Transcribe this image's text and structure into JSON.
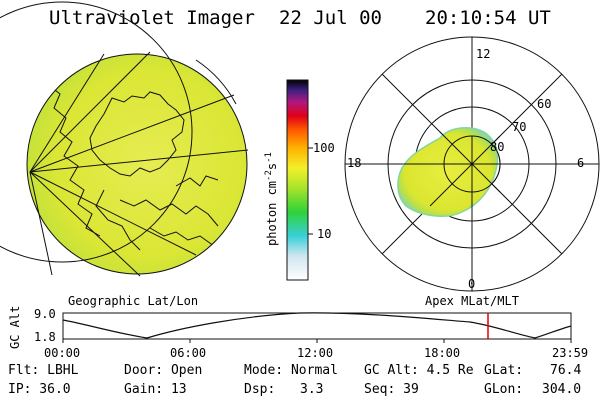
{
  "header": {
    "instrument": "Ultraviolet Imager",
    "date": "22 Jul 00",
    "time": "20:10:54 UT"
  },
  "colorbar": {
    "label_text": "photon cm",
    "label_sup1": "-2",
    "label_mid": "s",
    "label_sup2": "-1",
    "tick_high": "100",
    "tick_low": "10"
  },
  "polar_plot": {
    "label_top": "12",
    "label_left": "18",
    "label_right": "6",
    "label_bottom": "0",
    "lat_60": "60",
    "lat_70": "70",
    "lat_80": "80"
  },
  "panel_labels": {
    "left": "Geographic Lat/Lon",
    "right": "Apex MLat/MLT"
  },
  "altitude_plot": {
    "axis_label": "GC Alt",
    "y_high": "9.0",
    "y_low": "1.8",
    "x_ticks": [
      "00:00",
      "06:00",
      "12:00",
      "18:00",
      "23:59"
    ]
  },
  "info": {
    "flt": "Flt: LBHL",
    "ip": "IP: 36.0",
    "door": "Door: Open",
    "gain": "Gain: 13",
    "mode": "Mode: Normal",
    "dsp_label": "Dsp:",
    "dsp_value": "3.3",
    "gc_alt": "GC Alt: 4.5 Re",
    "seq": "Seq: 39",
    "glat_label": "GLat:",
    "glat_value": "76.4",
    "glon_label": "GLon:",
    "glon_value": "304.0"
  },
  "colors": {
    "marker": "#e00000",
    "aurora_fill": "#dce628",
    "colorbar_top": "#000000",
    "colorbar_bottom": "#ffffff"
  }
}
